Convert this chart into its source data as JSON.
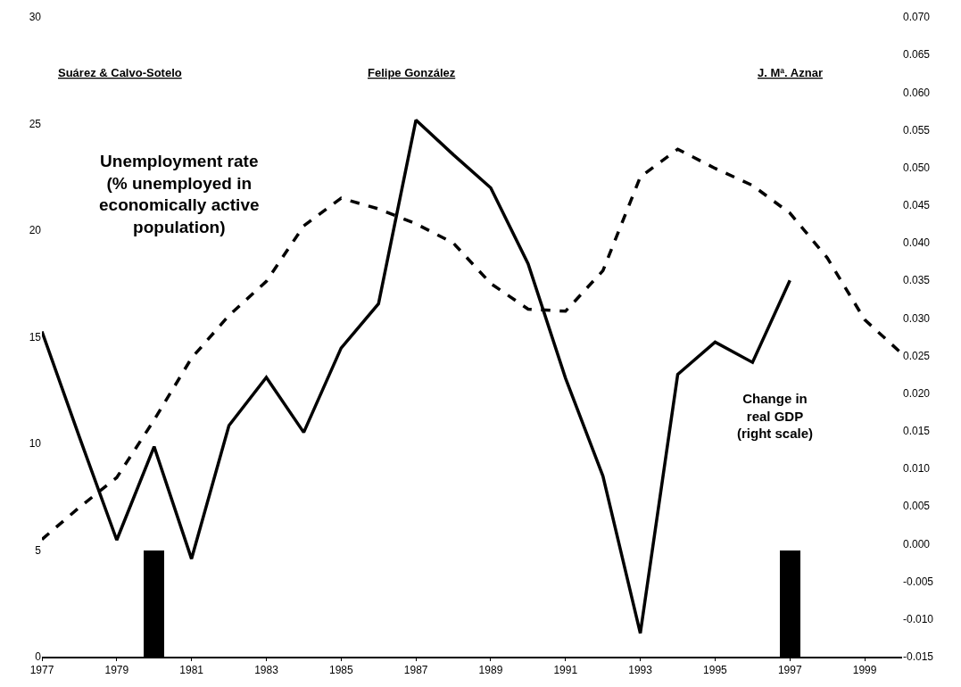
{
  "chart_data": {
    "type": "line",
    "x": [
      1977,
      1978,
      1979,
      1980,
      1981,
      1982,
      1983,
      1984,
      1985,
      1986,
      1987,
      1988,
      1989,
      1990,
      1991,
      1992,
      1993,
      1994,
      1995,
      1996,
      1997,
      1998,
      1999,
      2000
    ],
    "xlim": [
      1977,
      2000
    ],
    "xticks": [
      1977,
      1979,
      1981,
      1983,
      1985,
      1987,
      1989,
      1991,
      1993,
      1995,
      1997,
      1999
    ],
    "ylim": [
      0,
      30
    ],
    "yticks": [
      0,
      5,
      10,
      15,
      20,
      25,
      30
    ],
    "y2lim": [
      -0.015,
      0.07
    ],
    "y2ticks": [
      {
        "value": -0.015,
        "label": "-0.015"
      },
      {
        "value": -0.01,
        "label": "-0.010"
      },
      {
        "value": -0.005,
        "label": "-0.005"
      },
      {
        "value": 0,
        "label": "0.000"
      },
      {
        "value": 0.005,
        "label": "0.005"
      },
      {
        "value": 0.01,
        "label": "0.010"
      },
      {
        "value": 0.015,
        "label": "0.015"
      },
      {
        "value": 0.02,
        "label": "0.020"
      },
      {
        "value": 0.025,
        "label": "0.025"
      },
      {
        "value": 0.03,
        "label": "0.030"
      },
      {
        "value": 0.035,
        "label": "0.035"
      },
      {
        "value": 0.04,
        "label": "0.040"
      },
      {
        "value": 0.045,
        "label": "0.045"
      },
      {
        "value": 0.05,
        "label": "0.050"
      },
      {
        "value": 0.055,
        "label": "0.055"
      },
      {
        "value": 0.06,
        "label": "0.060"
      },
      {
        "value": 0.065,
        "label": "0.065"
      },
      {
        "value": 0.07,
        "label": "0.070"
      }
    ],
    "marker": "none",
    "series": [
      {
        "color": "#000000",
        "line_style": "dashed",
        "values": [
          5.5,
          7.0,
          8.4,
          11.1,
          14.0,
          16.0,
          17.6,
          20.2,
          21.5,
          21.0,
          20.3,
          19.4,
          17.5,
          16.3,
          16.2,
          18.1,
          22.5,
          23.8,
          22.9,
          22.1,
          20.8,
          18.7,
          15.8,
          14.2
        ]
      },
      {
        "color": "#000000",
        "axis": "y2",
        "line_style": "solid",
        "values": [
          0.0282,
          0.0142,
          0.0005,
          0.0129,
          -0.002,
          0.0157,
          0.0221,
          0.0148,
          0.026,
          0.0319,
          0.0563,
          0.0517,
          0.0473,
          0.0372,
          0.022,
          0.009,
          -0.0119,
          0.0225,
          0.0268,
          0.0241,
          0.035,
          null,
          null,
          null
        ]
      },
      {
        "type": "bar",
        "color": "#000000",
        "x": [
          1980,
          1997
        ],
        "values": [
          5,
          5
        ]
      }
    ],
    "annotations": [
      "Suárez & Calvo-Sotelo",
      "Felipe González",
      "J. Mª. Aznar",
      "Unemployment rate\n(% unemployed in\neconomically active\npopulation)",
      "Change in\nreal GDP\n(right scale)"
    ]
  }
}
